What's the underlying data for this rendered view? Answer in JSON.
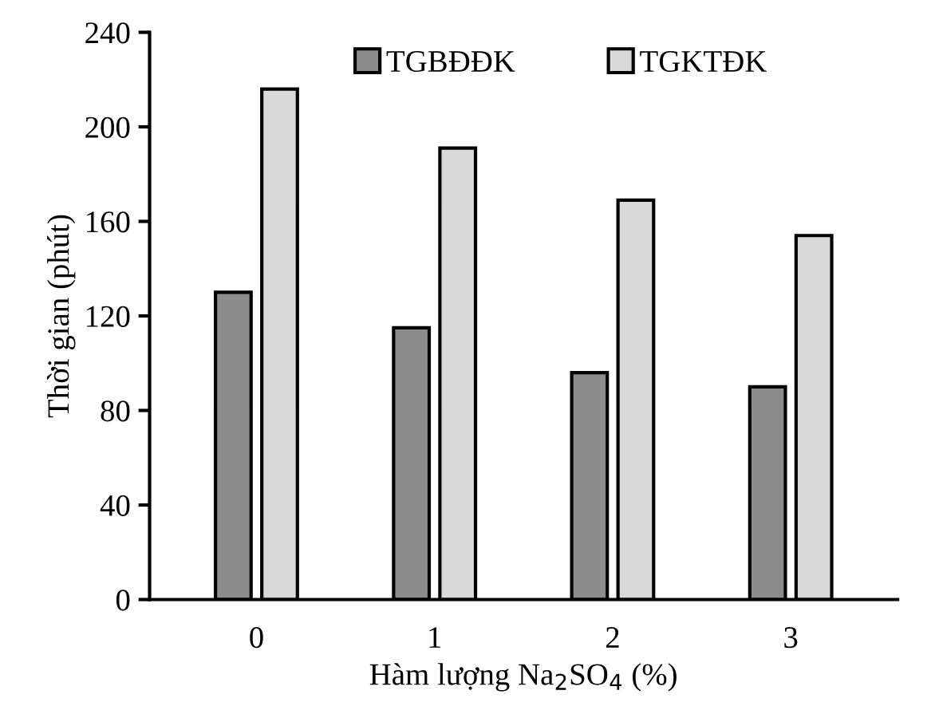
{
  "chart_data": {
    "type": "bar",
    "xlabel": "Hàm lượng Na$_{2}$SO$_{4}$ (%)",
    "ylabel": "Thời gian (phút)",
    "categories": [
      "0",
      "1",
      "2",
      "3"
    ],
    "series": [
      {
        "name": "TGBĐĐK",
        "color": "#8c8c8c",
        "values": [
          130,
          115,
          96,
          90
        ]
      },
      {
        "name": "TGKTĐK",
        "color": "#d9d9d9",
        "values": [
          216,
          191,
          169,
          154
        ]
      }
    ],
    "ylim": [
      0,
      240
    ],
    "yticks": [
      0,
      40,
      80,
      120,
      160,
      200,
      240
    ],
    "grid": false,
    "legend": "top"
  }
}
